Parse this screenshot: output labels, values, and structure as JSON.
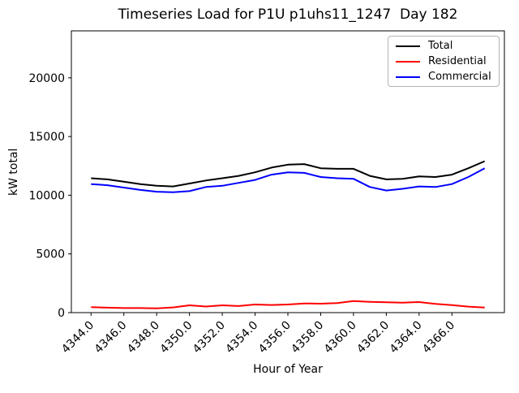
{
  "chart_data": {
    "type": "line",
    "title": "Timeseries Load for P1U p1uhs11_1247  Day 182",
    "xlabel": "Hour of Year",
    "ylabel": "kW total",
    "grid": false,
    "legend_position": "upper right",
    "xlim": [
      4342.8,
      4369.2
    ],
    "ylim": [
      0,
      24000
    ],
    "x_tick_values": [
      4344,
      4346,
      4348,
      4350,
      4352,
      4354,
      4356,
      4358,
      4360,
      4362,
      4364,
      4366
    ],
    "x_tick_labels": [
      "4344.0",
      "4346.0",
      "4348.0",
      "4350.0",
      "4352.0",
      "4354.0",
      "4356.0",
      "4358.0",
      "4360.0",
      "4362.0",
      "4364.0",
      "4366.0"
    ],
    "y_tick_values": [
      0,
      5000,
      10000,
      15000,
      20000
    ],
    "y_tick_labels": [
      "0",
      "5000",
      "10000",
      "15000",
      "20000"
    ],
    "x": [
      4344,
      4345,
      4346,
      4347,
      4348,
      4349,
      4350,
      4351,
      4352,
      4353,
      4354,
      4355,
      4356,
      4357,
      4358,
      4359,
      4360,
      4361,
      4362,
      4363,
      4364,
      4365,
      4366,
      4367,
      4368
    ],
    "series": [
      {
        "name": "Total",
        "color": "#000000",
        "values": [
          11450,
          11350,
          11150,
          10950,
          10800,
          10750,
          11000,
          11250,
          11450,
          11650,
          11950,
          12350,
          12600,
          12650,
          12300,
          12250,
          12250,
          11650,
          11350,
          11400,
          11600,
          11550,
          11750,
          12300,
          12900
        ]
      },
      {
        "name": "Residential",
        "color": "#ff0000",
        "values": [
          460,
          420,
          390,
          390,
          370,
          440,
          620,
          520,
          620,
          560,
          690,
          650,
          690,
          780,
          760,
          810,
          990,
          920,
          880,
          850,
          900,
          740,
          640,
          510,
          430
        ]
      },
      {
        "name": "Commercial",
        "color": "#0000ff",
        "values": [
          10950,
          10850,
          10650,
          10450,
          10300,
          10250,
          10350,
          10700,
          10800,
          11050,
          11300,
          11750,
          11950,
          11900,
          11550,
          11450,
          11400,
          10700,
          10400,
          10550,
          10750,
          10700,
          10950,
          11550,
          12300
        ]
      }
    ]
  }
}
